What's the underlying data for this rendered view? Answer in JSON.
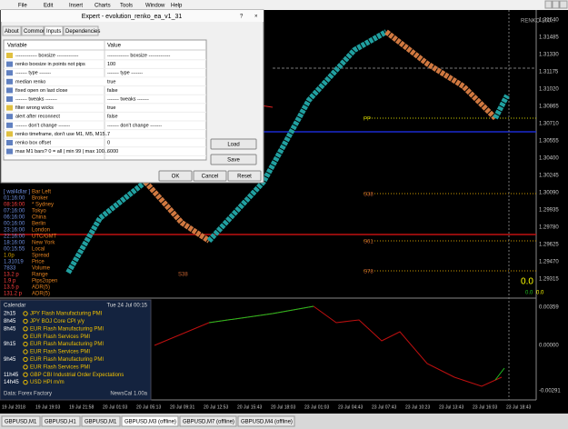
{
  "menu": [
    "File",
    "Edit",
    "Insert",
    "Charts",
    "Tools",
    "Window",
    "Help"
  ],
  "dialog": {
    "title": "Expert - evolution_renko_ea_v1_31",
    "tabs": [
      "About",
      "Common",
      "Inputs",
      "Dependencies"
    ],
    "columns": [
      "Variable",
      "Value"
    ],
    "rows": [
      [
        "------------- boxsize -------------",
        "------------- boxsize -------------"
      ],
      [
        "renko boxsize in points not pips",
        "100"
      ],
      [
        "------- type -------",
        "------- type -------"
      ],
      [
        "median renko",
        "true"
      ],
      [
        "fixed open on last close",
        "false"
      ],
      [
        "------- tweaks -------",
        "------- tweaks -------"
      ],
      [
        "filter wrong wicks",
        "true"
      ],
      [
        "alert after reconnect",
        "false"
      ],
      [
        "------- don't change -------",
        "------- don't change -------"
      ],
      [
        "renko timeframe, don't use M1, M5, M15...",
        "7"
      ],
      [
        "renko box offset",
        "0"
      ],
      [
        "max M1 bars? 0 = all | min 99 | max 100...",
        "6000"
      ]
    ],
    "buttons": {
      "load": "Load",
      "save": "Save",
      "ok": "OK",
      "cancel": "Cancel",
      "reset": "Reset"
    }
  },
  "info_panel": [
    [
      "[ wal4dlar ]",
      "Bar Left"
    ],
    [
      "01:16:00",
      "Broker"
    ],
    [
      "08:16:00",
      "* Sydney"
    ],
    [
      "07:16:00",
      "Tokyo"
    ],
    [
      "06:16:00",
      "China"
    ],
    [
      "00:16:00",
      "Berlin"
    ],
    [
      "23:16:00",
      "London"
    ],
    [
      "22:16:00",
      "UTC/GMT"
    ],
    [
      "18:16:00",
      "New York"
    ],
    [
      "00:15:55",
      "Local"
    ],
    [
      "1.0p",
      "Spread"
    ],
    [
      "1.31019",
      "Price"
    ],
    [
      "7833",
      "Volume"
    ],
    [
      "13.2 p",
      "Range"
    ],
    [
      "1.9 p",
      "Pips2open"
    ],
    [
      "13.5 p",
      "ADR(5)"
    ],
    [
      "131.2 p",
      "ADR(5)"
    ]
  ],
  "calendar": {
    "title": "Calendar",
    "date": "Tue 24 Jul 00:15",
    "events": [
      {
        "time": "2h15",
        "text": "JPY  Flash Manufacturing PMI"
      },
      {
        "time": "8h45",
        "text": "JPY  BOJ Core CPI y/y"
      },
      {
        "time": "8h45",
        "text": "EUR Flash Manufacturing PMI"
      },
      {
        "text": "EUR Flash Services PMI"
      },
      {
        "time": "9h15",
        "text": "EUR Flash Manufacturing PMI"
      },
      {
        "text": "EUR Flash Services PMI"
      },
      {
        "time": "9h45",
        "text": "EUR Flash Manufacturing PMI"
      },
      {
        "text": "EUR Flash Services PMI"
      },
      {
        "time": "11h45",
        "text": "GBP CBI Industrial Order Expectations"
      },
      {
        "time": "14h45",
        "text": "USD HPI m/m"
      }
    ],
    "source": "Data: Forex Factory",
    "version": "NewsCal 1.00a"
  },
  "chart": {
    "symbol_label": "RENKO 100...",
    "levels": [
      "PP",
      "S38",
      "S61",
      "S78",
      "S38"
    ],
    "readouts": [
      "0.0",
      "0.0",
      "0.0"
    ],
    "price_axis": [
      "1.31640",
      "1.31485",
      "1.31330",
      "1.31175",
      "1.31020",
      "1.30865",
      "1.30710",
      "1.30555",
      "1.30400",
      "1.30245",
      "1.30090",
      "1.29935",
      "1.29780",
      "1.29625",
      "1.29470",
      "1.29315"
    ],
    "indicator_axis": [
      "0.00359",
      "0.00000",
      "-0.00291"
    ],
    "time_axis": [
      "19 Jul 2018",
      "19 Jul 19:03",
      "19 Jul 21:58",
      "20 Jul 01:03",
      "20 Jul 05:13",
      "20 Jul 09:31",
      "20 Jul 12:53",
      "20 Jul 15:43",
      "20 Jul 18:03",
      "23 Jul 01:03",
      "23 Jul 04:43",
      "23 Jul 07:43",
      "23 Jul 10:23",
      "23 Jul 13:43",
      "23 Jul 16:03",
      "23 Jul 18:43"
    ]
  },
  "tabs": [
    "GBPUSD,M1",
    "GBPUSD,H1",
    "GBPUSD,M1",
    "GBPUSD,M3 (offline)",
    "GBPUSD,M7 (offline)",
    "GBPUSD,M4 (offline)"
  ]
}
